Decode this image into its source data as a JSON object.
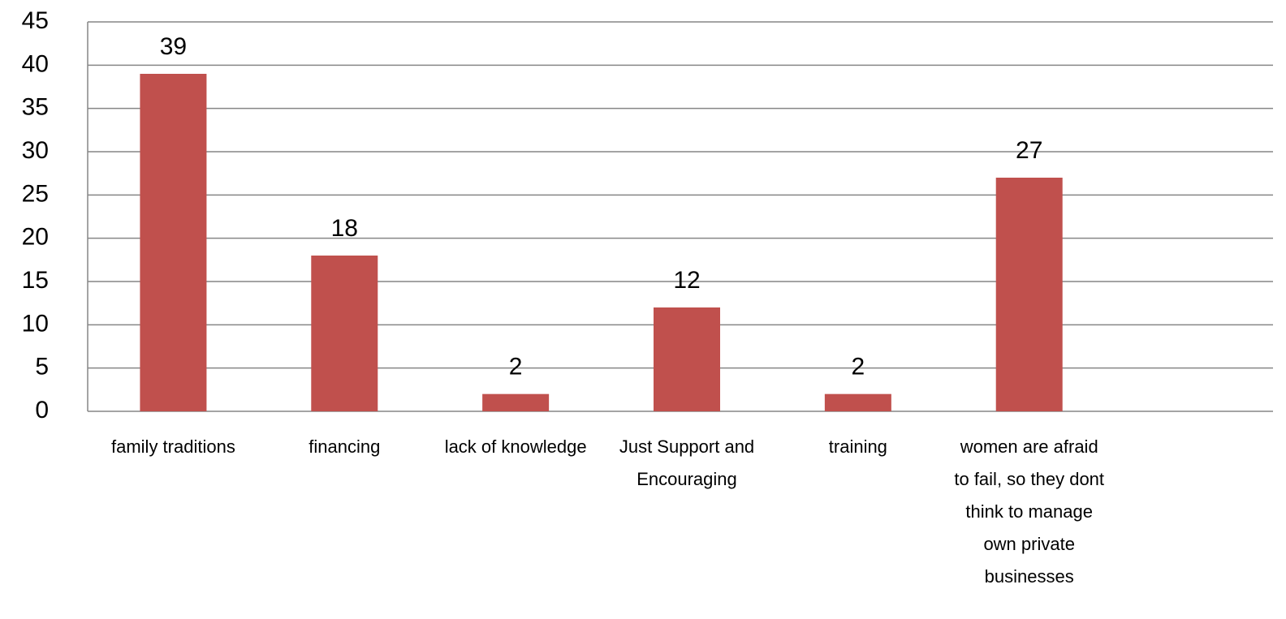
{
  "chart_data": {
    "type": "bar",
    "categories": [
      "family traditions",
      "financing",
      "lack of knowledge",
      "Just Support and Encouraging",
      "training",
      "women are afraid to fail, so they dont think to manage own private businesses",
      null
    ],
    "values": [
      39,
      18,
      2,
      12,
      2,
      27,
      null
    ],
    "color": "#c0504d",
    "ylim": [
      0,
      45
    ],
    "yticks": [
      0,
      5,
      10,
      15,
      20,
      25,
      30,
      35,
      40,
      45
    ],
    "grid": true
  }
}
